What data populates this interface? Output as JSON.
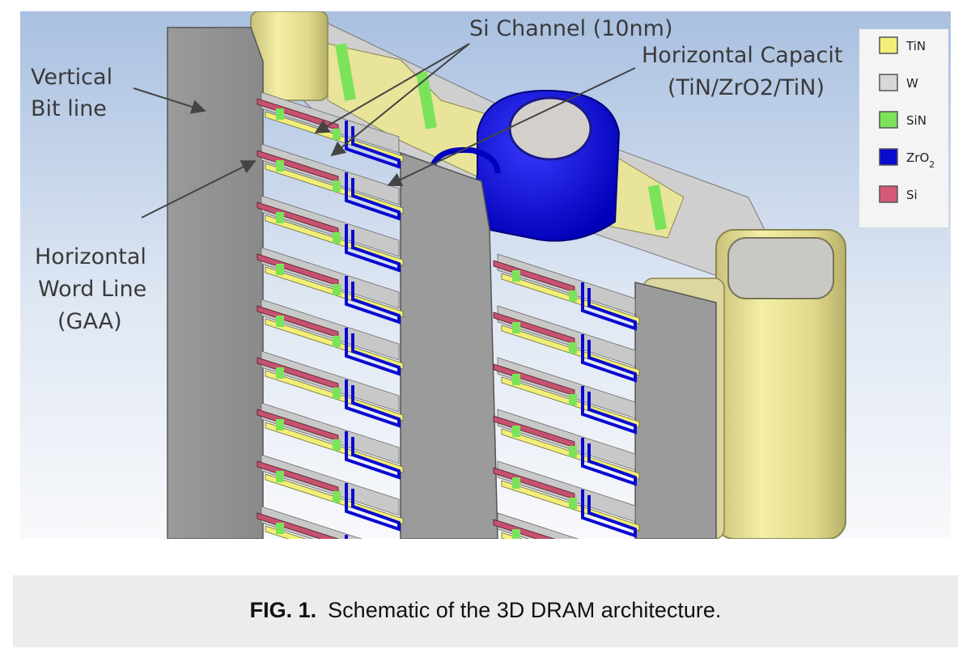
{
  "labels": {
    "bit_line_1": "Vertical",
    "bit_line_2": "Bit line",
    "word_line_1": "Horizontal",
    "word_line_2": "Word Line",
    "word_line_3": "(GAA)",
    "channel": "Si Channel (10nm)",
    "capacitor_1": "Horizontal Capacit",
    "capacitor_2": "(TiN/ZrO2/TiN)"
  },
  "legend": [
    {
      "label": "TiN",
      "color": "#f2ef79"
    },
    {
      "label": "W",
      "color": "#d8d8d8"
    },
    {
      "label": "SiN",
      "color": "#7be35a"
    },
    {
      "label": "ZrO",
      "sub": "2",
      "color": "#0a0ad0"
    },
    {
      "label": "Si",
      "color": "#d65a78"
    }
  ],
  "caption": {
    "label": "FIG. 1.",
    "text": "Schematic of the 3D DRAM architecture."
  }
}
